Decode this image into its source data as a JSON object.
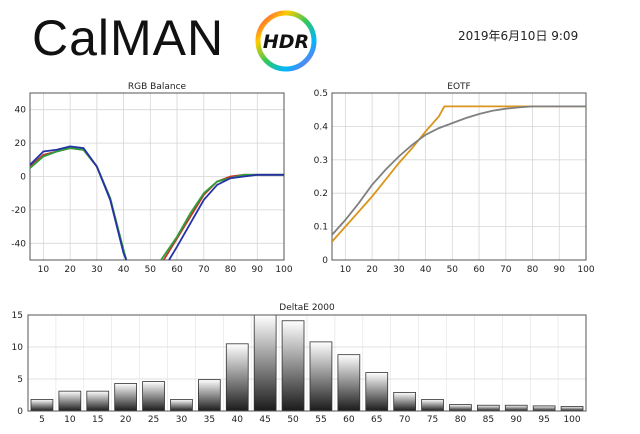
{
  "header": {
    "logo_text": "CalMAN",
    "badge_text": "HDR",
    "timestamp": "2019年6月10日 9:09"
  },
  "colors": {
    "red": "#c0392b",
    "green": "#2e9e3a",
    "blue": "#2432a8",
    "eotf_target": "#d8961a",
    "eotf_measured": "#808080"
  },
  "chart_data": [
    {
      "type": "line",
      "title": "RGB Balance",
      "xlim": [
        5,
        100
      ],
      "ylim": [
        -50,
        50
      ],
      "xticks": [
        10,
        20,
        30,
        40,
        50,
        60,
        70,
        80,
        90,
        100
      ],
      "yticks": [
        40,
        20,
        0,
        -20,
        -40
      ],
      "grid": true,
      "series": [
        {
          "color_key": "red",
          "segments": [
            [
              [
                5,
                6
              ],
              [
                10,
                13
              ],
              [
                15,
                15
              ],
              [
                20,
                17
              ],
              [
                25,
                16
              ],
              [
                30,
                6
              ],
              [
                35,
                -13
              ],
              [
                40,
                -45
              ],
              [
                41,
                -50
              ]
            ],
            [
              [
                55,
                -50
              ],
              [
                60,
                -37
              ],
              [
                65,
                -24
              ],
              [
                70,
                -11
              ],
              [
                75,
                -3
              ],
              [
                80,
                0
              ],
              [
                85,
                1
              ],
              [
                90,
                1
              ],
              [
                95,
                1
              ],
              [
                100,
                1
              ]
            ]
          ]
        },
        {
          "color_key": "green",
          "segments": [
            [
              [
                5,
                5
              ],
              [
                10,
                12
              ],
              [
                15,
                15
              ],
              [
                20,
                17
              ],
              [
                25,
                16
              ],
              [
                30,
                6
              ],
              [
                35,
                -13
              ],
              [
                40,
                -44
              ],
              [
                41,
                -50
              ]
            ],
            [
              [
                54,
                -50
              ],
              [
                60,
                -36
              ],
              [
                65,
                -22
              ],
              [
                70,
                -10
              ],
              [
                75,
                -3
              ],
              [
                80,
                -1
              ],
              [
                85,
                1
              ],
              [
                90,
                1
              ],
              [
                95,
                1
              ],
              [
                100,
                1
              ]
            ]
          ]
        },
        {
          "color_key": "blue",
          "segments": [
            [
              [
                5,
                7
              ],
              [
                10,
                15
              ],
              [
                15,
                16
              ],
              [
                20,
                18
              ],
              [
                25,
                17
              ],
              [
                30,
                6
              ],
              [
                35,
                -14
              ],
              [
                40,
                -46
              ],
              [
                41,
                -50
              ]
            ],
            [
              [
                57,
                -50
              ],
              [
                60,
                -42
              ],
              [
                65,
                -28
              ],
              [
                70,
                -14
              ],
              [
                75,
                -5
              ],
              [
                80,
                -1
              ],
              [
                85,
                0
              ],
              [
                90,
                1
              ],
              [
                95,
                1
              ],
              [
                100,
                1
              ]
            ]
          ]
        }
      ]
    },
    {
      "type": "line",
      "title": "EOTF",
      "xlim": [
        5,
        100
      ],
      "ylim": [
        0,
        0.5
      ],
      "xticks": [
        10,
        20,
        30,
        40,
        50,
        60,
        70,
        80,
        90,
        100
      ],
      "yticks": [
        0.5,
        0.4,
        0.3,
        0.2,
        0.1,
        0
      ],
      "yticklabels": [
        "0.5",
        "0.4",
        "0.3",
        "0.2",
        "0.1",
        "0"
      ],
      "grid": true,
      "series": [
        {
          "color_key": "eotf_target",
          "points": [
            [
              5,
              0.055
            ],
            [
              10,
              0.1
            ],
            [
              15,
              0.145
            ],
            [
              20,
              0.19
            ],
            [
              25,
              0.24
            ],
            [
              30,
              0.29
            ],
            [
              35,
              0.335
            ],
            [
              40,
              0.385
            ],
            [
              45,
              0.43
            ],
            [
              47,
              0.46
            ],
            [
              50,
              0.46
            ],
            [
              60,
              0.46
            ],
            [
              70,
              0.46
            ],
            [
              80,
              0.46
            ],
            [
              90,
              0.46
            ],
            [
              100,
              0.46
            ]
          ]
        },
        {
          "color_key": "eotf_measured",
          "points": [
            [
              5,
              0.075
            ],
            [
              10,
              0.12
            ],
            [
              15,
              0.17
            ],
            [
              20,
              0.225
            ],
            [
              25,
              0.27
            ],
            [
              30,
              0.31
            ],
            [
              35,
              0.345
            ],
            [
              40,
              0.375
            ],
            [
              45,
              0.395
            ],
            [
              50,
              0.41
            ],
            [
              55,
              0.425
            ],
            [
              60,
              0.437
            ],
            [
              65,
              0.447
            ],
            [
              70,
              0.453
            ],
            [
              75,
              0.457
            ],
            [
              80,
              0.46
            ],
            [
              85,
              0.46
            ],
            [
              90,
              0.46
            ],
            [
              95,
              0.46
            ],
            [
              100,
              0.46
            ]
          ]
        }
      ]
    },
    {
      "type": "bar",
      "title": "DeltaE 2000",
      "categories": [
        "5",
        "10",
        "15",
        "20",
        "25",
        "30",
        "35",
        "40",
        "45",
        "50",
        "55",
        "60",
        "65",
        "70",
        "75",
        "80",
        "85",
        "90",
        "95",
        "100"
      ],
      "values": [
        1.8,
        3.1,
        3.1,
        4.3,
        4.6,
        1.8,
        4.9,
        10.5,
        15.2,
        14.1,
        10.8,
        8.8,
        6.0,
        2.9,
        1.8,
        1.0,
        0.9,
        0.9,
        0.8,
        0.7
      ],
      "ylim": [
        0,
        15
      ],
      "yticks": [
        15,
        10,
        5,
        0
      ],
      "grid": true
    }
  ]
}
